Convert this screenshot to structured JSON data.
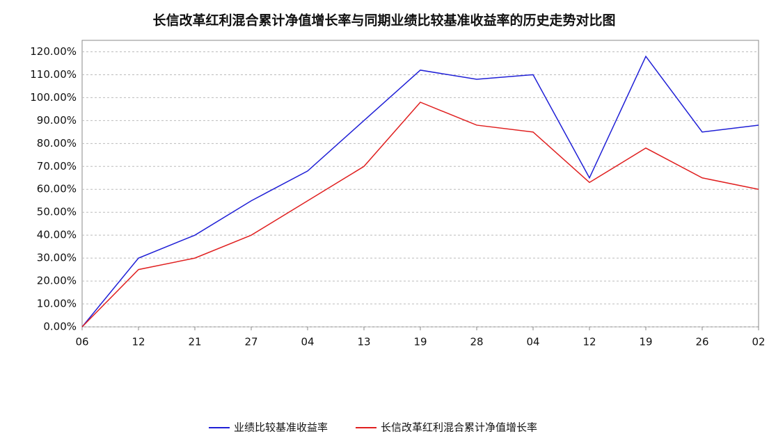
{
  "chart_data": {
    "type": "line",
    "title": "长信改革红利混合累计净值增长率与同期业绩比较基准收益率的历史走势对比图",
    "categories": [
      "06",
      "12",
      "21",
      "27",
      "04",
      "13",
      "19",
      "28",
      "04",
      "12",
      "19",
      "26",
      "02"
    ],
    "series": [
      {
        "name": "业绩比较基准收益率",
        "color": "#1f1fd6",
        "values": [
          0,
          30,
          40,
          55,
          68,
          90,
          112,
          108,
          110,
          65,
          118,
          85,
          88
        ]
      },
      {
        "name": "长信改革红利混合累计净值增长率",
        "color": "#e01f1f",
        "values": [
          0,
          25,
          30,
          40,
          55,
          70,
          98,
          88,
          85,
          63,
          78,
          65,
          60
        ]
      }
    ],
    "ylim": [
      0,
      125
    ],
    "yticks": [
      {
        "value": 0,
        "label": "0.00%"
      },
      {
        "value": 10,
        "label": "10.00%"
      },
      {
        "value": 20,
        "label": "20.00%"
      },
      {
        "value": 30,
        "label": "30.00%"
      },
      {
        "value": 40,
        "label": "40.00%"
      },
      {
        "value": 50,
        "label": "50.00%"
      },
      {
        "value": 60,
        "label": "60.00%"
      },
      {
        "value": 70,
        "label": "70.00%"
      },
      {
        "value": 80,
        "label": "80.00%"
      },
      {
        "value": 90,
        "label": "90.00%"
      },
      {
        "value": 100,
        "label": "100.00%"
      },
      {
        "value": 110,
        "label": "110.00%"
      },
      {
        "value": 120,
        "label": "120.00%"
      }
    ],
    "grid": true
  }
}
